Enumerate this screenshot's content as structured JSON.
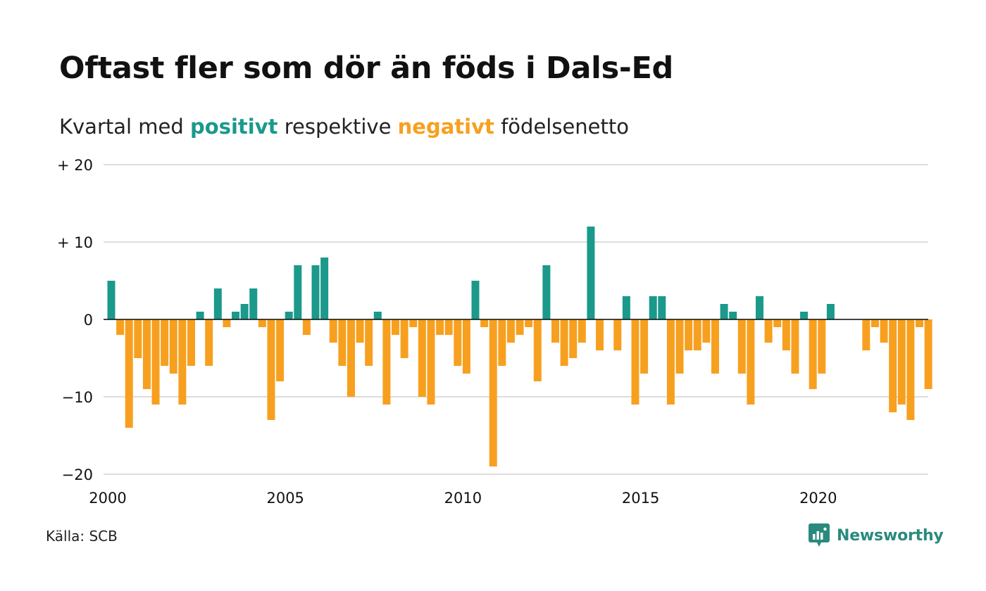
{
  "title": "Oftast fler som dör än föds i Dals-Ed",
  "subtitle": {
    "prefix": "Kvartal med ",
    "positive_word": "positivt",
    "middle": " respektive ",
    "negative_word": "negativt",
    "suffix": " födelsenetto"
  },
  "colors": {
    "positive": "#1b998b",
    "negative": "#f7a01f",
    "grid": "#dddddd",
    "axis": "#111111",
    "brand": "#2a8a7e"
  },
  "chart_data": {
    "type": "bar",
    "x_start": "2000-Q1",
    "quarters_per_year": 4,
    "values": [
      5,
      -2,
      -14,
      -5,
      -9,
      -11,
      -6,
      -7,
      -11,
      -6,
      1,
      -6,
      4,
      -1,
      1,
      2,
      4,
      -1,
      -13,
      -8,
      1,
      7,
      -2,
      7,
      8,
      -3,
      -6,
      -10,
      -3,
      -6,
      1,
      -11,
      -2,
      -5,
      -1,
      -10,
      -11,
      -2,
      -2,
      -6,
      -7,
      5,
      -1,
      -19,
      -6,
      -3,
      -2,
      -1,
      -8,
      7,
      -3,
      -6,
      -5,
      -3,
      12,
      -4,
      0,
      -4,
      3,
      -11,
      -7,
      3,
      3,
      -11,
      -7,
      -4,
      -4,
      -3,
      -7,
      2,
      1,
      -7,
      -11,
      3,
      -3,
      -1,
      -4,
      -7,
      1,
      -9,
      -7,
      2,
      0,
      0,
      0,
      -4,
      -1,
      -3,
      -12,
      -11,
      -13,
      -1,
      -9
    ],
    "y_ticks": [
      {
        "value": 20,
        "label": "+ 20"
      },
      {
        "value": 10,
        "label": "+ 10"
      },
      {
        "value": 0,
        "label": "0"
      },
      {
        "value": -10,
        "label": "−10"
      },
      {
        "value": -20,
        "label": "−20"
      }
    ],
    "x_ticks": [
      {
        "year": 2000,
        "label": "2000"
      },
      {
        "year": 2005,
        "label": "2005"
      },
      {
        "year": 2010,
        "label": "2010"
      },
      {
        "year": 2015,
        "label": "2015"
      },
      {
        "year": 2020,
        "label": "2020"
      }
    ],
    "ylim": [
      -20,
      20
    ],
    "grid": true
  },
  "source": "Källa: SCB",
  "brand": {
    "name": "Newsworthy",
    "icon": "newsworthy-logo-icon"
  }
}
